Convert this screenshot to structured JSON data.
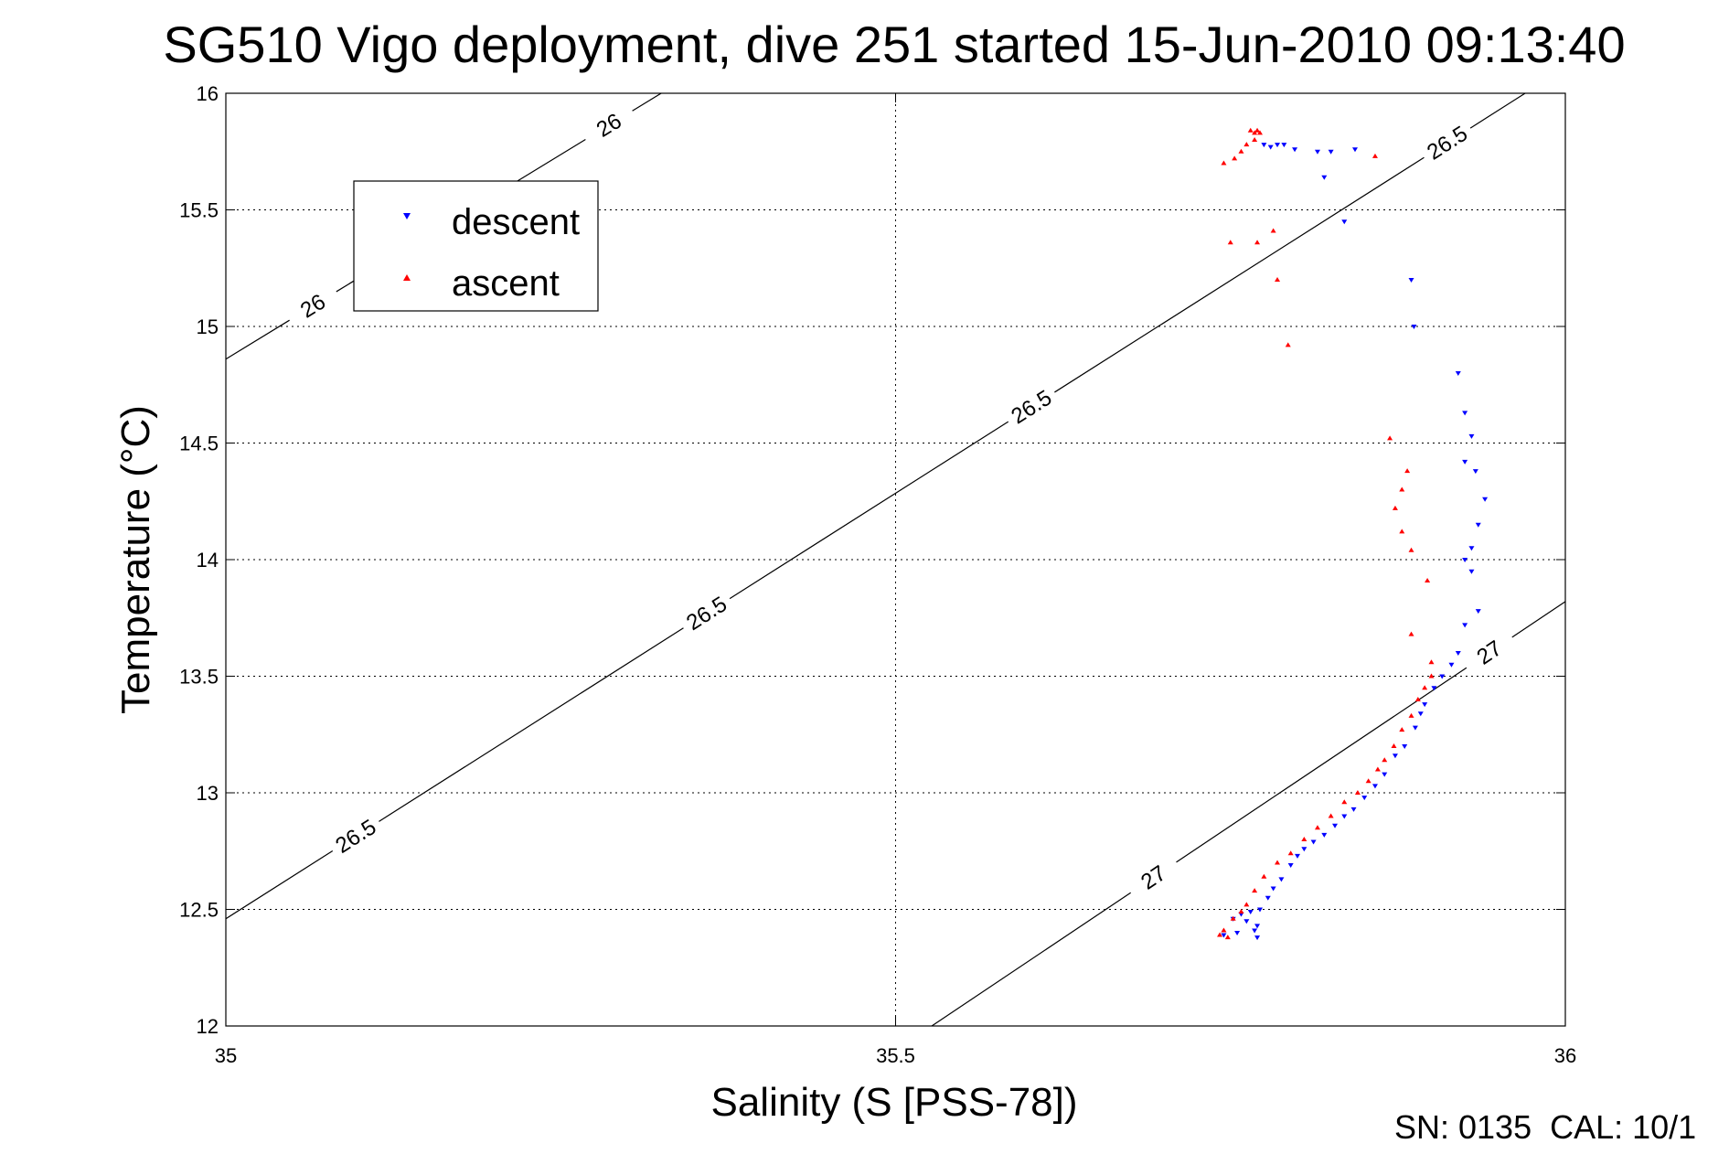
{
  "chart_data": {
    "type": "scatter",
    "title": "SG510 Vigo deployment, dive 251 started 15-Jun-2010 09:13:40",
    "xlabel": "Salinity (S [PSS-78])",
    "ylabel": "Temperature (°C)",
    "xlim": [
      35,
      36
    ],
    "ylim": [
      12,
      16
    ],
    "xticks": [
      "35",
      "35.5",
      "36"
    ],
    "yticks": [
      "12",
      "12.5",
      "13",
      "13.5",
      "14",
      "14.5",
      "15",
      "15.5",
      "16"
    ],
    "grid": true,
    "legend_position": "top-left",
    "footer": "SN: 0135  CAL: 10/1",
    "contour_labels": [
      "26",
      "26",
      "26.5",
      "26.5",
      "26.5",
      "26.5",
      "27",
      "27"
    ],
    "contours": [
      {
        "level": "26",
        "points": [
          [
            35.0,
            14.86
          ],
          [
            35.325,
            16.0
          ]
        ]
      },
      {
        "level": "26.5",
        "points": [
          [
            35.0,
            12.46
          ],
          [
            35.97,
            16.0
          ]
        ]
      },
      {
        "level": "27",
        "points": [
          [
            35.527,
            12.0
          ],
          [
            36.0,
            13.82
          ]
        ]
      }
    ],
    "series": [
      {
        "name": "descent",
        "color": "#0000ff",
        "marker": "triangle-down",
        "points": [
          [
            35.775,
            15.78
          ],
          [
            35.78,
            15.77
          ],
          [
            35.785,
            15.78
          ],
          [
            35.79,
            15.78
          ],
          [
            35.798,
            15.76
          ],
          [
            35.815,
            15.75
          ],
          [
            35.825,
            15.75
          ],
          [
            35.843,
            15.76
          ],
          [
            35.82,
            15.64
          ],
          [
            35.835,
            15.45
          ],
          [
            35.885,
            15.2
          ],
          [
            35.887,
            15.0
          ],
          [
            35.92,
            14.8
          ],
          [
            35.925,
            14.63
          ],
          [
            35.93,
            14.53
          ],
          [
            35.925,
            14.42
          ],
          [
            35.933,
            14.38
          ],
          [
            35.94,
            14.26
          ],
          [
            35.935,
            14.15
          ],
          [
            35.93,
            14.05
          ],
          [
            35.925,
            14.0
          ],
          [
            35.93,
            13.95
          ],
          [
            35.935,
            13.78
          ],
          [
            35.925,
            13.72
          ],
          [
            35.92,
            13.6
          ],
          [
            35.915,
            13.55
          ],
          [
            35.908,
            13.5
          ],
          [
            35.902,
            13.45
          ],
          [
            35.895,
            13.38
          ],
          [
            35.892,
            13.34
          ],
          [
            35.888,
            13.28
          ],
          [
            35.88,
            13.2
          ],
          [
            35.873,
            13.16
          ],
          [
            35.865,
            13.08
          ],
          [
            35.858,
            13.03
          ],
          [
            35.85,
            12.98
          ],
          [
            35.842,
            12.93
          ],
          [
            35.835,
            12.9
          ],
          [
            35.828,
            12.86
          ],
          [
            35.82,
            12.82
          ],
          [
            35.812,
            12.79
          ],
          [
            35.805,
            12.76
          ],
          [
            35.8,
            12.73
          ],
          [
            35.795,
            12.69
          ],
          [
            35.788,
            12.63
          ],
          [
            35.782,
            12.59
          ],
          [
            35.778,
            12.55
          ],
          [
            35.772,
            12.5
          ],
          [
            35.765,
            12.49
          ],
          [
            35.758,
            12.48
          ],
          [
            35.752,
            12.46
          ],
          [
            35.762,
            12.45
          ],
          [
            35.77,
            12.43
          ],
          [
            35.768,
            12.41
          ],
          [
            35.755,
            12.4
          ],
          [
            35.745,
            12.39
          ],
          [
            35.77,
            12.38
          ]
        ]
      },
      {
        "name": "ascent",
        "color": "#ff0000",
        "marker": "triangle-up",
        "points": [
          [
            35.765,
            15.84
          ],
          [
            35.768,
            15.83
          ],
          [
            35.77,
            15.84
          ],
          [
            35.772,
            15.83
          ],
          [
            35.768,
            15.8
          ],
          [
            35.762,
            15.78
          ],
          [
            35.758,
            15.75
          ],
          [
            35.753,
            15.72
          ],
          [
            35.745,
            15.7
          ],
          [
            35.858,
            15.73
          ],
          [
            35.75,
            15.36
          ],
          [
            35.77,
            15.36
          ],
          [
            35.782,
            15.41
          ],
          [
            35.785,
            15.2
          ],
          [
            35.793,
            14.92
          ],
          [
            35.869,
            14.52
          ],
          [
            35.882,
            14.38
          ],
          [
            35.878,
            14.3
          ],
          [
            35.873,
            14.22
          ],
          [
            35.878,
            14.12
          ],
          [
            35.885,
            14.04
          ],
          [
            35.897,
            13.91
          ],
          [
            35.885,
            13.68
          ],
          [
            35.9,
            13.56
          ],
          [
            35.9,
            13.5
          ],
          [
            35.895,
            13.45
          ],
          [
            35.89,
            13.4
          ],
          [
            35.885,
            13.33
          ],
          [
            35.878,
            13.27
          ],
          [
            35.872,
            13.2
          ],
          [
            35.865,
            13.14
          ],
          [
            35.86,
            13.1
          ],
          [
            35.853,
            13.05
          ],
          [
            35.845,
            13.0
          ],
          [
            35.835,
            12.96
          ],
          [
            35.825,
            12.9
          ],
          [
            35.815,
            12.85
          ],
          [
            35.805,
            12.8
          ],
          [
            35.795,
            12.74
          ],
          [
            35.785,
            12.7
          ],
          [
            35.775,
            12.64
          ],
          [
            35.768,
            12.58
          ],
          [
            35.762,
            12.52
          ],
          [
            35.758,
            12.49
          ],
          [
            35.752,
            12.46
          ],
          [
            35.745,
            12.41
          ],
          [
            35.742,
            12.39
          ],
          [
            35.748,
            12.38
          ]
        ]
      }
    ]
  }
}
